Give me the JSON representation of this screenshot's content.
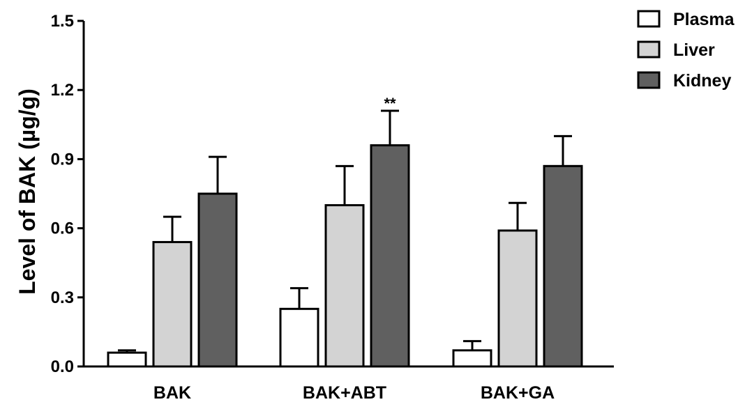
{
  "chart_data": {
    "type": "bar",
    "ylabel": "Level of BAK (µg/g)",
    "xlabel": "",
    "ylim": [
      0,
      1.5
    ],
    "yticks": [
      "0.0",
      "0.3",
      "0.6",
      "0.9",
      "1.2",
      "1.5"
    ],
    "categories": [
      "BAK",
      "BAK+ABT",
      "BAK+GA"
    ],
    "series": [
      {
        "name": "Plasma",
        "color": "#ffffff",
        "values": [
          0.06,
          0.25,
          0.07
        ],
        "errors": [
          0.01,
          0.09,
          0.04
        ]
      },
      {
        "name": "Liver",
        "color": "#d3d3d3",
        "values": [
          0.54,
          0.7,
          0.59
        ],
        "errors": [
          0.11,
          0.17,
          0.12
        ]
      },
      {
        "name": "Kidney",
        "color": "#606060",
        "values": [
          0.75,
          0.96,
          0.87
        ],
        "errors": [
          0.16,
          0.15,
          0.13
        ]
      }
    ],
    "annotations": [
      {
        "category": "BAK+ABT",
        "series": "Kidney",
        "text": "**"
      }
    ],
    "legend_position": "top-right",
    "grid": false
  }
}
